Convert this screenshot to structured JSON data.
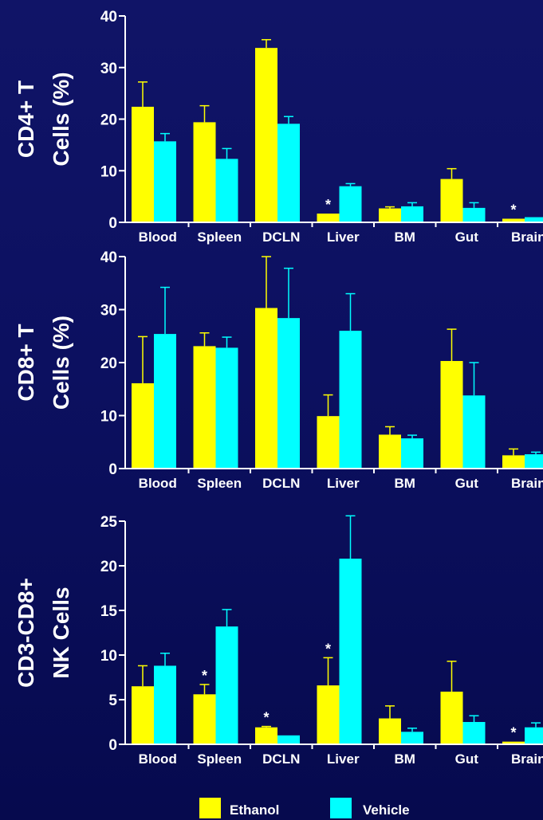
{
  "colors": {
    "ethanol": "#ffff00",
    "vehicle": "#00ffff",
    "axis": "#ffffff",
    "background": "#0c1060"
  },
  "legend": {
    "position": "bottom-center",
    "items": [
      {
        "label": "Ethanol",
        "color": "#ffff00"
      },
      {
        "label": "Vehicle",
        "color": "#00ffff"
      }
    ]
  },
  "chart_data": [
    {
      "type": "bar",
      "ylabel": [
        "CD4+ T",
        "Cells (%)"
      ],
      "ylim": [
        0,
        40
      ],
      "yticks": [
        0,
        10,
        20,
        30,
        40
      ],
      "categories": [
        "Blood",
        "Spleen",
        "DCLN",
        "Liver",
        "BM",
        "Gut",
        "Brain"
      ],
      "series": [
        {
          "name": "Ethanol",
          "values": [
            22.4,
            19.4,
            33.8,
            1.7,
            2.7,
            8.4,
            0.7
          ],
          "errors": [
            4.8,
            3.2,
            1.6,
            0,
            0.3,
            2.0,
            0
          ]
        },
        {
          "name": "Vehicle",
          "values": [
            15.7,
            12.3,
            19.1,
            7.0,
            3.1,
            2.8,
            1.0
          ],
          "errors": [
            1.5,
            2.0,
            1.4,
            0.5,
            0.7,
            1.0,
            0
          ]
        }
      ],
      "annotations": [
        {
          "category": "Liver",
          "series": "Ethanol",
          "text": "*"
        },
        {
          "category": "Brain",
          "series": "Ethanol",
          "text": "*"
        }
      ]
    },
    {
      "type": "bar",
      "ylabel": [
        "CD8+ T",
        "Cells (%)"
      ],
      "ylim": [
        0,
        40
      ],
      "yticks": [
        0,
        10,
        20,
        30,
        40
      ],
      "categories": [
        "Blood",
        "Spleen",
        "DCLN",
        "Liver",
        "BM",
        "Gut",
        "Brain"
      ],
      "series": [
        {
          "name": "Ethanol",
          "values": [
            16.1,
            23.1,
            30.3,
            9.9,
            6.4,
            20.3,
            2.5
          ],
          "errors": [
            8.8,
            2.5,
            9.7,
            4.0,
            1.5,
            6.0,
            1.2
          ]
        },
        {
          "name": "Vehicle",
          "values": [
            25.4,
            22.8,
            28.4,
            26.0,
            5.7,
            13.8,
            2.7
          ],
          "errors": [
            8.8,
            2.0,
            9.4,
            7.0,
            0.6,
            6.2,
            0.4
          ]
        }
      ],
      "annotations": []
    },
    {
      "type": "bar",
      "ylabel": [
        "CD3-CD8+",
        "NK Cells"
      ],
      "ylim": [
        0,
        25
      ],
      "yticks": [
        0,
        5,
        10,
        15,
        20,
        25
      ],
      "categories": [
        "Blood",
        "Spleen",
        "DCLN",
        "Liver",
        "BM",
        "Gut",
        "Brain"
      ],
      "series": [
        {
          "name": "Ethanol",
          "values": [
            6.5,
            5.6,
            1.9,
            6.6,
            2.9,
            5.9,
            0.3
          ],
          "errors": [
            2.3,
            1.1,
            0.1,
            3.1,
            1.4,
            3.4,
            0
          ]
        },
        {
          "name": "Vehicle",
          "values": [
            8.8,
            13.2,
            1.0,
            20.8,
            1.4,
            2.5,
            1.9
          ],
          "errors": [
            1.4,
            1.9,
            0,
            4.8,
            0.4,
            0.7,
            0.5
          ]
        }
      ],
      "annotations": [
        {
          "category": "Spleen",
          "series": "Ethanol",
          "text": "*"
        },
        {
          "category": "DCLN",
          "series": "Ethanol",
          "text": "*"
        },
        {
          "category": "Liver",
          "series": "Ethanol",
          "text": "*"
        },
        {
          "category": "Brain",
          "series": "Ethanol",
          "text": "*"
        }
      ]
    }
  ]
}
